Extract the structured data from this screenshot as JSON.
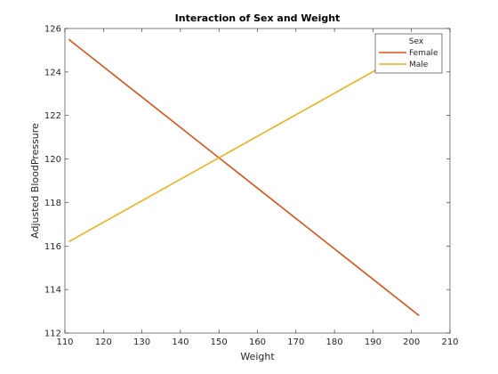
{
  "chart_data": {
    "type": "line",
    "title": "Interaction of Sex and Weight",
    "xlabel": "Weight",
    "ylabel": "Adjusted BloodPressure",
    "xlim": [
      110,
      210
    ],
    "ylim": [
      112,
      126
    ],
    "xticks": [
      110,
      120,
      130,
      140,
      150,
      160,
      170,
      180,
      190,
      200,
      210
    ],
    "yticks": [
      112,
      114,
      116,
      118,
      120,
      122,
      124,
      126
    ],
    "legend": {
      "title": "Sex",
      "placement": "top-right"
    },
    "series": [
      {
        "name": "Female",
        "color": "#d95319",
        "x": [
          111,
          202
        ],
        "y": [
          125.5,
          112.8
        ]
      },
      {
        "name": "Male",
        "color": "#edb120",
        "x": [
          111,
          202
        ],
        "y": [
          116.2,
          125.2
        ]
      }
    ]
  }
}
